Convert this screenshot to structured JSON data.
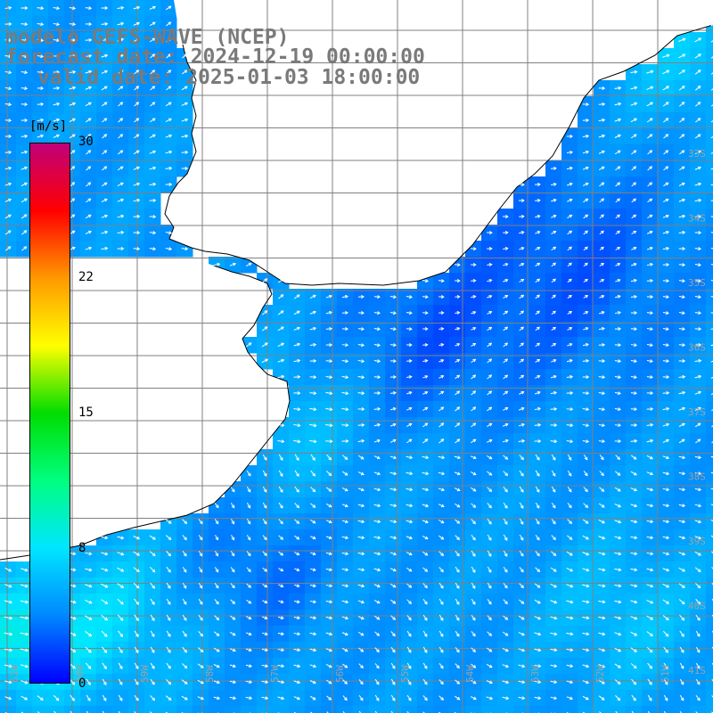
{
  "title": {
    "model": "modelo GEFS-WAVE (NCEP)",
    "forecast": "forecast date: 2024-12-19 00:00:00",
    "valid": "valid date: 2025-01-03 18:00:00"
  },
  "colorbar": {
    "unit": "[m/s]",
    "min": 0,
    "max": 30,
    "ticks": [
      "30",
      "22",
      "15",
      "8",
      "0"
    ],
    "stops": [
      "#0000ff",
      "#0088ff",
      "#00e6ff",
      "#00ff80",
      "#00dd00",
      "#ffff00",
      "#ff9900",
      "#ff0000",
      "#c0007a"
    ]
  },
  "map": {
    "land_color": "#ffffff",
    "grid_color": "#808080",
    "coast_color": "#000000",
    "arrow_color": "#ffffff",
    "lat_labels": [
      "33S",
      "34S",
      "35S",
      "36S",
      "37S",
      "38S",
      "39S",
      "40S",
      "41S"
    ],
    "lon_labels": [
      "61W",
      "60W",
      "59W",
      "58W",
      "57W",
      "56W",
      "55W",
      "54W",
      "53W",
      "52W",
      "51W"
    ],
    "variable": "wind speed and direction"
  }
}
